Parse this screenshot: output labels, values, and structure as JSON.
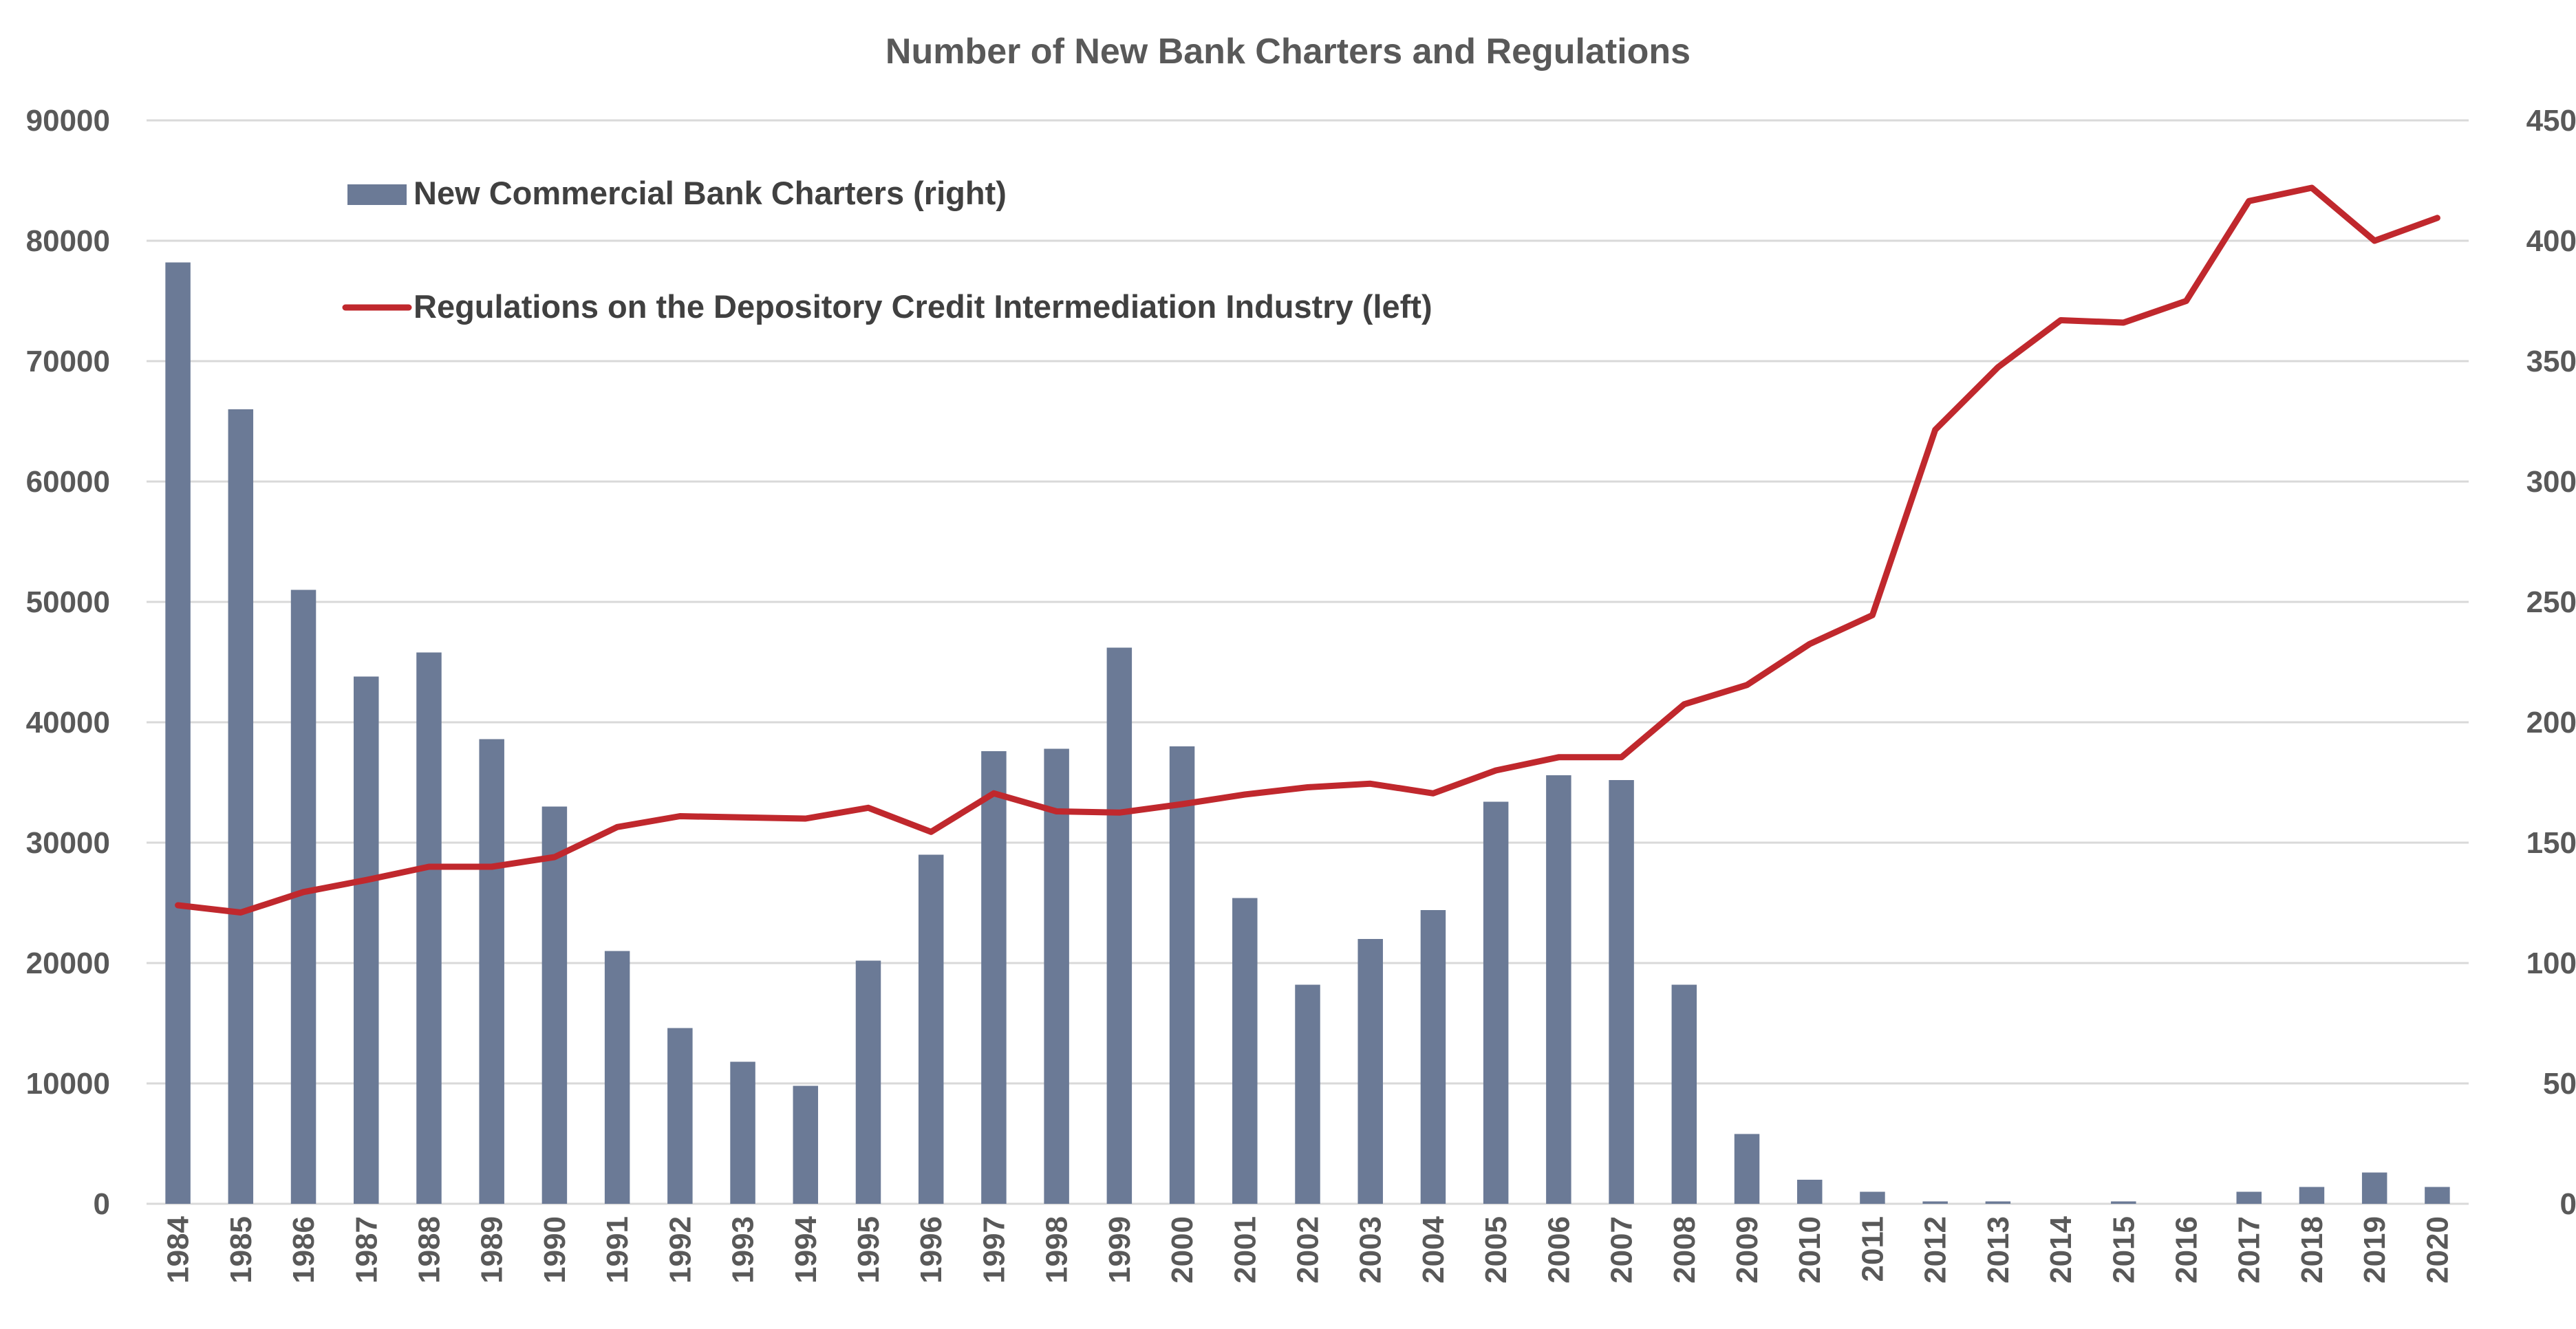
{
  "chart_data": {
    "type": "bar+line",
    "title": "Number of New Bank Charters and Regulations",
    "categories": [
      "1984",
      "1985",
      "1986",
      "1987",
      "1988",
      "1989",
      "1990",
      "1991",
      "1992",
      "1993",
      "1994",
      "1995",
      "1996",
      "1997",
      "1998",
      "1999",
      "2000",
      "2001",
      "2002",
      "2003",
      "2004",
      "2005",
      "2006",
      "2007",
      "2008",
      "2009",
      "2010",
      "2011",
      "2012",
      "2013",
      "2014",
      "2015",
      "2016",
      "2017",
      "2018",
      "2019",
      "2020"
    ],
    "series": [
      {
        "name": "New Commercial Bank Charters (right)",
        "type": "bar",
        "axis": "right",
        "color": "#6b7a96",
        "values": [
          391,
          330,
          255,
          219,
          229,
          193,
          165,
          105,
          73,
          59,
          49,
          101,
          145,
          188,
          189,
          231,
          190,
          127,
          91,
          110,
          122,
          167,
          178,
          176,
          91,
          29,
          10,
          5,
          1,
          1,
          0,
          1,
          0,
          5,
          7,
          13,
          7
        ]
      },
      {
        "name": "Regulations on the Depository Credit Intermediation Industry (left)",
        "type": "line",
        "axis": "left",
        "color": "#c0282d",
        "values": [
          24800,
          24200,
          25900,
          26900,
          28000,
          28000,
          28800,
          31300,
          32200,
          32100,
          32000,
          32900,
          30900,
          34100,
          32600,
          32500,
          33200,
          34000,
          34600,
          34900,
          34100,
          36000,
          37100,
          37100,
          41500,
          43100,
          46500,
          48900,
          64300,
          69500,
          73400,
          73200,
          75000,
          83300,
          84400,
          80000,
          81900
        ]
      }
    ],
    "left_axis": {
      "min": 0,
      "max": 90000,
      "step": 10000,
      "ticks": [
        "0",
        "10000",
        "20000",
        "30000",
        "40000",
        "50000",
        "60000",
        "70000",
        "80000",
        "90000"
      ]
    },
    "right_axis": {
      "min": 0,
      "max": 450,
      "step": 50,
      "ticks": [
        "0",
        "50",
        "100",
        "150",
        "200",
        "250",
        "300",
        "350",
        "400",
        "450"
      ]
    },
    "legend_position": "top-left",
    "grid": true
  }
}
